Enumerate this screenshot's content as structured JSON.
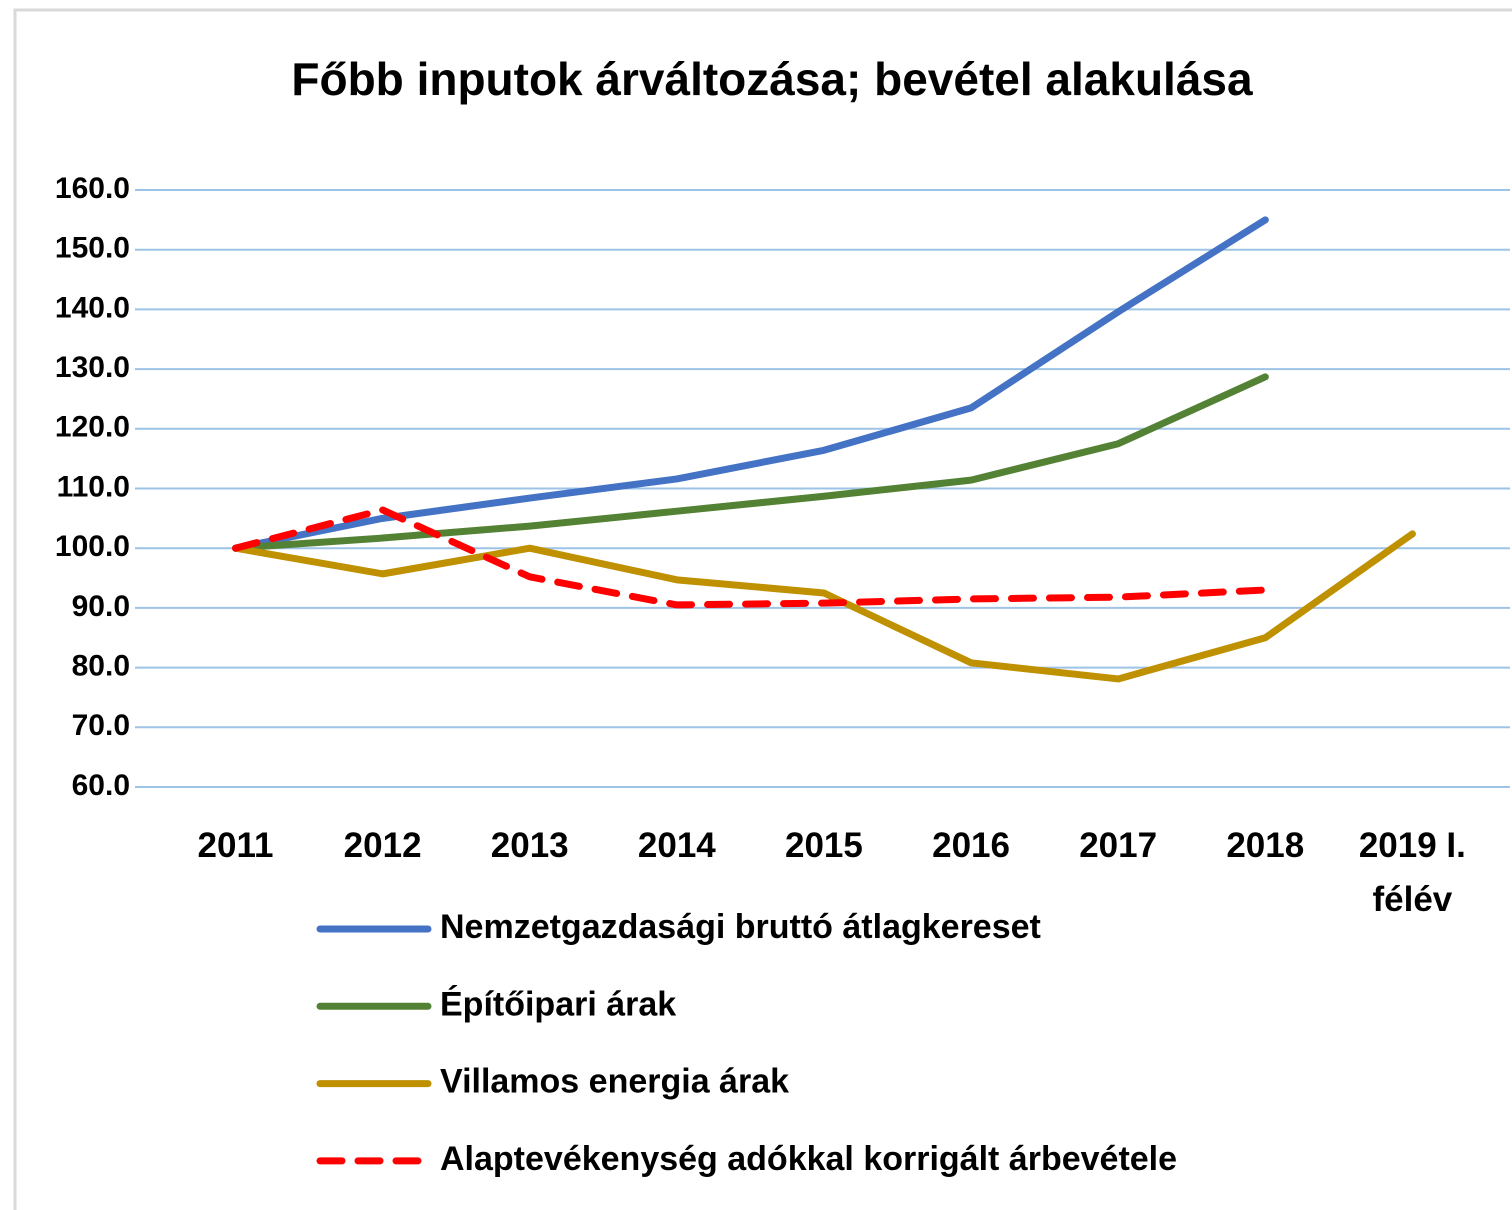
{
  "chart_data": {
    "type": "line",
    "title": "Főbb inputok árváltozása; bevétel alakulása",
    "categories": [
      "2011",
      "2012",
      "2013",
      "2014",
      "2015",
      "2016",
      "2017",
      "2018",
      "2019 I. félév"
    ],
    "series": [
      {
        "name": "Nemzetgazdasági bruttó átlagkereset",
        "color": "#4472c4",
        "dash": false,
        "values": [
          100,
          105,
          108.4,
          111.6,
          116.4,
          123.5,
          139.6,
          155,
          null
        ]
      },
      {
        "name": "Építőipari árak",
        "color": "#548235",
        "dash": false,
        "values": [
          100,
          101.7,
          103.7,
          106.2,
          108.7,
          111.4,
          117.5,
          128.7,
          null
        ]
      },
      {
        "name": "Villamos energia árak",
        "color": "#bf9000",
        "dash": false,
        "values": [
          100,
          95.7,
          100,
          94.7,
          92.5,
          80.8,
          78.1,
          85,
          102.4
        ]
      },
      {
        "name": "Alaptevékenység adókkal korrigált árbevétele",
        "color": "#ff0000",
        "dash": true,
        "values": [
          100,
          106.4,
          95.2,
          90.5,
          90.8,
          91.5,
          91.8,
          93,
          null
        ]
      }
    ],
    "ylim": [
      60,
      160
    ],
    "yticks": [
      {
        "value": 60,
        "label": "60.0"
      },
      {
        "value": 70,
        "label": "70.0"
      },
      {
        "value": 80,
        "label": "80.0"
      },
      {
        "value": 90,
        "label": "90.0"
      },
      {
        "value": 100,
        "label": "100.0"
      },
      {
        "value": 110,
        "label": "110.0"
      },
      {
        "value": 120,
        "label": "120.0"
      },
      {
        "value": 130,
        "label": "130.0"
      },
      {
        "value": 140,
        "label": "140.0"
      },
      {
        "value": 150,
        "label": "150.0"
      },
      {
        "value": 160,
        "label": "160.0"
      }
    ],
    "grid": true,
    "legend": "bottom"
  }
}
